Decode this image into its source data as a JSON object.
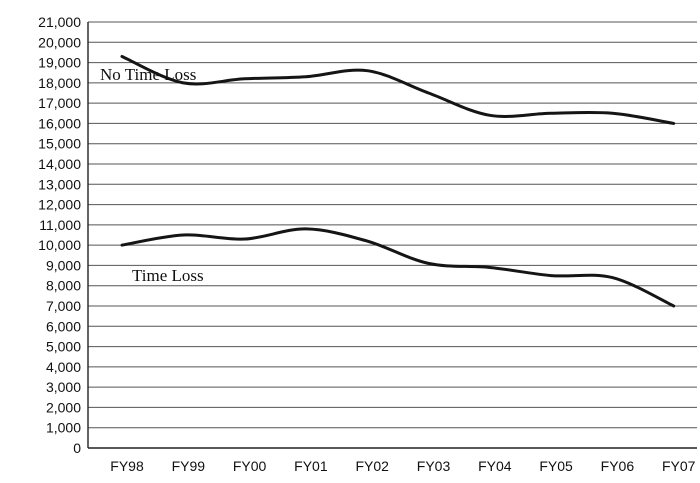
{
  "chart_data": {
    "type": "line",
    "title": "",
    "xlabel": "",
    "ylabel": "",
    "categories": [
      "FY98",
      "FY99",
      "FY00",
      "FY01",
      "FY02",
      "FY03",
      "FY04",
      "FY05",
      "FY06",
      "FY07"
    ],
    "ylim": [
      0,
      21000
    ],
    "yticks": [
      0,
      1000,
      2000,
      3000,
      4000,
      5000,
      6000,
      7000,
      8000,
      9000,
      10000,
      11000,
      12000,
      13000,
      14000,
      15000,
      16000,
      17000,
      18000,
      19000,
      20000,
      21000
    ],
    "ytick_labels": [
      "0",
      "1,000",
      "2,000",
      "3,000",
      "4,000",
      "5,000",
      "6,000",
      "7,000",
      "8,000",
      "9,000",
      "10,000",
      "11,000",
      "12,000",
      "13,000",
      "14,000",
      "15,000",
      "16,000",
      "17,000",
      "18,000",
      "19,000",
      "20,000",
      "21,000"
    ],
    "grid": true,
    "legend": "inline labels",
    "series": [
      {
        "name": "No Time Loss",
        "values": [
          19300,
          18000,
          18200,
          18300,
          18600,
          17500,
          16400,
          16500,
          16500,
          16000
        ]
      },
      {
        "name": "Time Loss",
        "values": [
          10000,
          10500,
          10300,
          10800,
          10200,
          9100,
          8900,
          8500,
          8400,
          7000
        ]
      }
    ]
  }
}
